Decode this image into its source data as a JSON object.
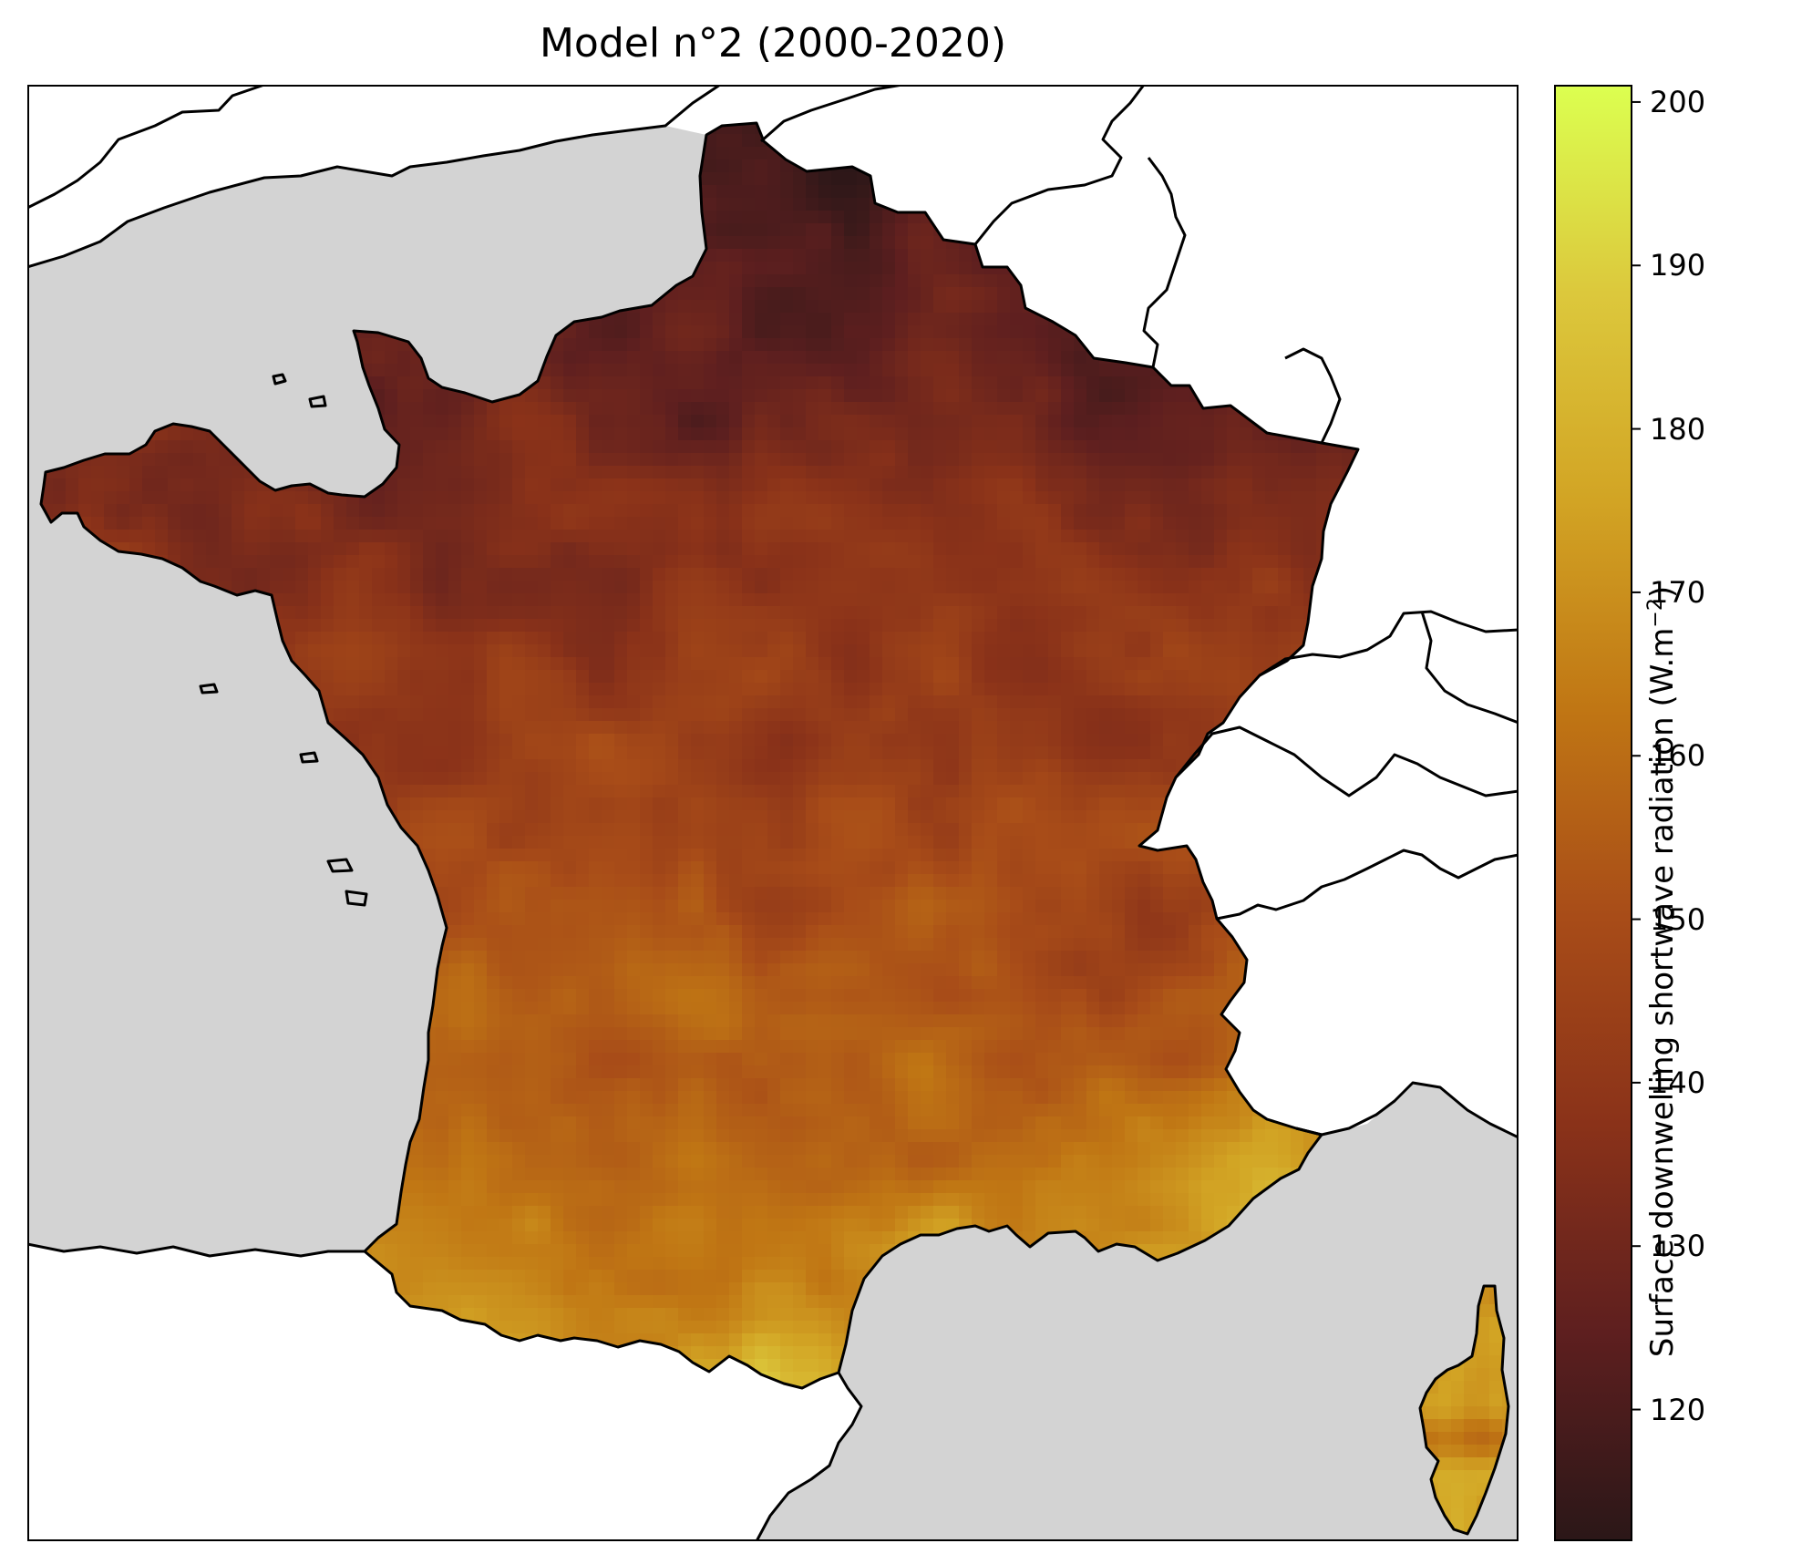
{
  "title": "Model n°2 (2000-2020)",
  "colorbar": {
    "label_main": "Surface downwelling shortwave radiation (W.m",
    "label_sup": "−2",
    "label_close": ")",
    "min": 112,
    "max": 201,
    "ticks": [
      120,
      130,
      140,
      150,
      160,
      170,
      180,
      190,
      200
    ],
    "colormap": [
      "#2b1718",
      "#5e1f1f",
      "#8a3219",
      "#a84c18",
      "#c07614",
      "#d2a424",
      "#dcc83c",
      "#dcff50"
    ]
  },
  "map": {
    "land_color": "#ffffff",
    "sea_color": "#d3d3d3",
    "data_field": "surface downwelling shortwave radiation over France",
    "colors": {
      "outline": "#000000"
    }
  }
}
